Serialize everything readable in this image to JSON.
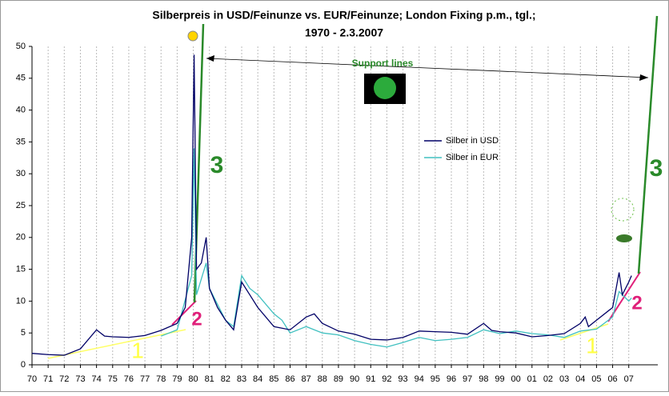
{
  "chart_data": {
    "type": "line",
    "title": "Silberpreis in USD/Feinunze vs. EUR/Feinunze; London Fixing p.m., tgl.;",
    "subtitle": "1970 - 2.3.2007",
    "xlim": [
      1970,
      2008.8
    ],
    "xticks": [
      {
        "value": 1970,
        "label": "70"
      },
      {
        "value": 1971,
        "label": "71"
      },
      {
        "value": 1972,
        "label": "72"
      },
      {
        "value": 1973,
        "label": "73"
      },
      {
        "value": 1974,
        "label": "74"
      },
      {
        "value": 1975,
        "label": "75"
      },
      {
        "value": 1976,
        "label": "76"
      },
      {
        "value": 1977,
        "label": "77"
      },
      {
        "value": 1978,
        "label": "78"
      },
      {
        "value": 1979,
        "label": "79"
      },
      {
        "value": 1980,
        "label": "80"
      },
      {
        "value": 1981,
        "label": "81"
      },
      {
        "value": 1982,
        "label": "82"
      },
      {
        "value": 1983,
        "label": "83"
      },
      {
        "value": 1984,
        "label": "84"
      },
      {
        "value": 1985,
        "label": "85"
      },
      {
        "value": 1986,
        "label": "86"
      },
      {
        "value": 1987,
        "label": "87"
      },
      {
        "value": 1988,
        "label": "88"
      },
      {
        "value": 1989,
        "label": "89"
      },
      {
        "value": 1990,
        "label": "90"
      },
      {
        "value": 1991,
        "label": "91"
      },
      {
        "value": 1992,
        "label": "92"
      },
      {
        "value": 1993,
        "label": "93"
      },
      {
        "value": 1994,
        "label": "94"
      },
      {
        "value": 1995,
        "label": "95"
      },
      {
        "value": 1996,
        "label": "96"
      },
      {
        "value": 1997,
        "label": "97"
      },
      {
        "value": 1998,
        "label": "98"
      },
      {
        "value": 1999,
        "label": "99"
      },
      {
        "value": 2000,
        "label": "00"
      },
      {
        "value": 2001,
        "label": "01"
      },
      {
        "value": 2002,
        "label": "02"
      },
      {
        "value": 2003,
        "label": "03"
      },
      {
        "value": 2004,
        "label": "04"
      },
      {
        "value": 2005,
        "label": "05"
      },
      {
        "value": 2006,
        "label": "06"
      },
      {
        "value": 2007,
        "label": "07"
      }
    ],
    "ylim": [
      0,
      50
    ],
    "yticks": [
      0,
      5,
      10,
      15,
      20,
      25,
      30,
      35,
      40,
      45,
      50
    ],
    "grid": true,
    "series": [
      {
        "name": "Silber in USD",
        "color": "#000066",
        "x": [
          1970,
          1971,
          1972,
          1973,
          1974,
          1974.5,
          1975,
          1976,
          1977,
          1978,
          1979,
          1979.5,
          1979.9,
          1980.05,
          1980.2,
          1980.5,
          1980.8,
          1981,
          1981.5,
          1982,
          1982.5,
          1983,
          1983.5,
          1984,
          1985,
          1986,
          1987,
          1987.5,
          1988,
          1989,
          1990,
          1991,
          1992,
          1993,
          1994,
          1995,
          1996,
          1997,
          1998,
          1998.5,
          1999,
          2000,
          2001,
          2002,
          2003,
          2004,
          2004.3,
          2004.5,
          2005,
          2006,
          2006.4,
          2006.6,
          2007,
          2007.17
        ],
        "values": [
          1.8,
          1.6,
          1.5,
          2.5,
          5.5,
          4.5,
          4.4,
          4.3,
          4.6,
          5.4,
          6.5,
          9,
          20,
          48.7,
          15,
          16,
          20,
          12,
          9,
          7,
          5.5,
          13,
          11,
          9,
          6,
          5.5,
          7.5,
          8,
          6.5,
          5.3,
          4.8,
          4,
          3.9,
          4.3,
          5.3,
          5.2,
          5.1,
          4.8,
          6.5,
          5.4,
          5.2,
          5,
          4.4,
          4.6,
          4.9,
          6.5,
          7.5,
          6,
          7,
          9,
          14.5,
          11,
          13,
          14
        ]
      },
      {
        "name": "Silber in EUR",
        "color": "#40c0c0",
        "x": [
          1978,
          1979,
          1979.9,
          1980.05,
          1980.2,
          1980.8,
          1981,
          1982,
          1982.5,
          1983,
          1983.5,
          1984,
          1985,
          1985.5,
          1986,
          1987,
          1988,
          1989,
          1990,
          1991,
          1992,
          1993,
          1994,
          1995,
          1996,
          1997,
          1998,
          1999,
          2000,
          2001,
          2002,
          2003,
          2004,
          2005,
          2006,
          2006.4,
          2007,
          2007.17
        ],
        "values": [
          4.5,
          5.5,
          14,
          34,
          11,
          16,
          12,
          7,
          6,
          14,
          12,
          11,
          8,
          7,
          5,
          6,
          5,
          4.7,
          3.8,
          3.2,
          2.8,
          3.5,
          4.3,
          3.8,
          4,
          4.3,
          5.5,
          4.9,
          5.3,
          4.9,
          4.7,
          4.3,
          5.3,
          5.6,
          7.5,
          11.5,
          10,
          10.5
        ]
      }
    ],
    "annotations": [
      "Support lines",
      "1",
      "1",
      "2",
      "2",
      "3",
      "3"
    ]
  }
}
